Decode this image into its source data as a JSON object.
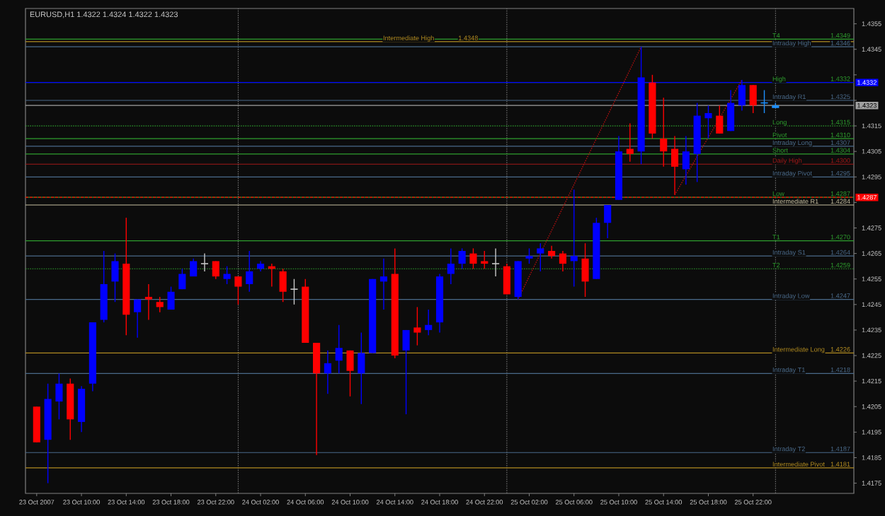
{
  "chart_data": {
    "type": "candlestick",
    "title": "EURUSD,H1  1.4322 1.4324 1.4322 1.4323",
    "x": [
      "2007-10-23T06:00",
      "2007-10-23T07:00",
      "2007-10-23T08:00",
      "2007-10-23T09:00",
      "2007-10-23T10:00",
      "2007-10-23T11:00",
      "2007-10-23T12:00",
      "2007-10-23T13:00",
      "2007-10-23T14:00",
      "2007-10-23T15:00",
      "2007-10-23T16:00",
      "2007-10-23T17:00",
      "2007-10-23T18:00",
      "2007-10-23T19:00",
      "2007-10-23T20:00",
      "2007-10-23T21:00",
      "2007-10-23T22:00",
      "2007-10-23T23:00",
      "2007-10-24T00:00",
      "2007-10-24T01:00",
      "2007-10-24T02:00",
      "2007-10-24T03:00",
      "2007-10-24T04:00",
      "2007-10-24T05:00",
      "2007-10-24T06:00",
      "2007-10-24T07:00",
      "2007-10-24T08:00",
      "2007-10-24T09:00",
      "2007-10-24T10:00",
      "2007-10-24T11:00",
      "2007-10-24T12:00",
      "2007-10-24T13:00",
      "2007-10-24T14:00",
      "2007-10-24T15:00",
      "2007-10-24T16:00",
      "2007-10-24T17:00",
      "2007-10-24T18:00",
      "2007-10-24T19:00",
      "2007-10-24T20:00",
      "2007-10-24T21:00",
      "2007-10-24T22:00",
      "2007-10-24T23:00",
      "2007-10-25T00:00",
      "2007-10-25T01:00",
      "2007-10-25T02:00",
      "2007-10-25T03:00",
      "2007-10-25T04:00",
      "2007-10-25T05:00",
      "2007-10-25T06:00",
      "2007-10-25T07:00",
      "2007-10-25T08:00",
      "2007-10-25T09:00",
      "2007-10-25T10:00",
      "2007-10-25T11:00",
      "2007-10-25T12:00",
      "2007-10-25T13:00",
      "2007-10-25T14:00",
      "2007-10-25T15:00",
      "2007-10-25T16:00",
      "2007-10-25T17:00",
      "2007-10-25T18:00",
      "2007-10-25T19:00",
      "2007-10-25T20:00",
      "2007-10-25T21:00",
      "2007-10-25T22:00",
      "2007-10-25T23:00",
      "2007-10-26T00:00"
    ],
    "ohlc": [
      [
        1.4205,
        1.4205,
        1.4191,
        1.4191
      ],
      [
        1.4192,
        1.4214,
        1.4175,
        1.4208
      ],
      [
        1.4207,
        1.4218,
        1.42,
        1.4214
      ],
      [
        1.4214,
        1.4216,
        1.4192,
        1.42
      ],
      [
        1.4199,
        1.4213,
        1.4195,
        1.4212
      ],
      [
        1.4214,
        1.4238,
        1.4211,
        1.4238
      ],
      [
        1.4239,
        1.4266,
        1.4238,
        1.4253
      ],
      [
        1.4254,
        1.4265,
        1.4246,
        1.4262
      ],
      [
        1.4261,
        1.4279,
        1.4233,
        1.4241
      ],
      [
        1.4242,
        1.4247,
        1.4232,
        1.4247
      ],
      [
        1.4248,
        1.4253,
        1.4239,
        1.4247
      ],
      [
        1.4246,
        1.4248,
        1.4242,
        1.4244
      ],
      [
        1.4243,
        1.4252,
        1.4243,
        1.425
      ],
      [
        1.4251,
        1.4259,
        1.4251,
        1.4257
      ],
      [
        1.4256,
        1.4263,
        1.4256,
        1.4262
      ],
      [
        1.4261,
        1.4265,
        1.4258,
        1.4261
      ],
      [
        1.4262,
        1.4262,
        1.4255,
        1.4256
      ],
      [
        1.4255,
        1.426,
        1.4253,
        1.4257
      ],
      [
        1.4256,
        1.4256,
        1.4245,
        1.4252
      ],
      [
        1.4253,
        1.4266,
        1.425,
        1.4258
      ],
      [
        1.4259,
        1.4262,
        1.4258,
        1.4261
      ],
      [
        1.426,
        1.4261,
        1.4252,
        1.4259
      ],
      [
        1.4258,
        1.4259,
        1.4246,
        1.425
      ],
      [
        1.4251,
        1.4255,
        1.4245,
        1.4251
      ],
      [
        1.4252,
        1.4255,
        1.423,
        1.423
      ],
      [
        1.423,
        1.423,
        1.4186,
        1.4218
      ],
      [
        1.4218,
        1.4227,
        1.421,
        1.4222
      ],
      [
        1.4223,
        1.4237,
        1.4218,
        1.4228
      ],
      [
        1.4227,
        1.4227,
        1.4209,
        1.4219
      ],
      [
        1.4218,
        1.4234,
        1.4206,
        1.4226
      ],
      [
        1.4226,
        1.4255,
        1.4226,
        1.4255
      ],
      [
        1.4254,
        1.4263,
        1.4243,
        1.4256
      ],
      [
        1.4257,
        1.4267,
        1.4224,
        1.4225
      ],
      [
        1.4227,
        1.4235,
        1.4202,
        1.4235
      ],
      [
        1.4236,
        1.4244,
        1.4229,
        1.4234
      ],
      [
        1.4235,
        1.4243,
        1.4233,
        1.4237
      ],
      [
        1.4238,
        1.4257,
        1.4234,
        1.4256
      ],
      [
        1.4257,
        1.4267,
        1.4253,
        1.4261
      ],
      [
        1.4261,
        1.4267,
        1.4259,
        1.4266
      ],
      [
        1.4265,
        1.4267,
        1.4259,
        1.4261
      ],
      [
        1.4262,
        1.4266,
        1.4259,
        1.4261
      ],
      [
        1.4261,
        1.4267,
        1.4256,
        1.4261
      ],
      [
        1.426,
        1.4261,
        1.4249,
        1.4249
      ],
      [
        1.4248,
        1.4262,
        1.4247,
        1.4262
      ],
      [
        1.4263,
        1.4267,
        1.4261,
        1.4264
      ],
      [
        1.4265,
        1.4269,
        1.4258,
        1.4267
      ],
      [
        1.4266,
        1.4268,
        1.4263,
        1.4264
      ],
      [
        1.4265,
        1.4266,
        1.4258,
        1.4261
      ],
      [
        1.4262,
        1.429,
        1.4252,
        1.4264
      ],
      [
        1.4263,
        1.4269,
        1.4248,
        1.4254
      ],
      [
        1.4255,
        1.4279,
        1.4255,
        1.4277
      ],
      [
        1.4277,
        1.4284,
        1.4271,
        1.4284
      ],
      [
        1.4286,
        1.4311,
        1.4286,
        1.4305
      ],
      [
        1.4306,
        1.4316,
        1.4301,
        1.4304
      ],
      [
        1.4305,
        1.4346,
        1.43,
        1.4334
      ],
      [
        1.4332,
        1.4335,
        1.431,
        1.4312
      ],
      [
        1.431,
        1.4326,
        1.4299,
        1.4305
      ],
      [
        1.4306,
        1.4311,
        1.4288,
        1.4299
      ],
      [
        1.4298,
        1.4311,
        1.4292,
        1.4305
      ],
      [
        1.4304,
        1.4324,
        1.4293,
        1.4319
      ],
      [
        1.4318,
        1.4323,
        1.431,
        1.432
      ],
      [
        1.4319,
        1.4323,
        1.4312,
        1.4312
      ],
      [
        1.4313,
        1.4329,
        1.4313,
        1.4324
      ],
      [
        1.4323,
        1.4333,
        1.4321,
        1.4331
      ],
      [
        1.4331,
        1.4331,
        1.432,
        1.4323
      ],
      [
        1.4324,
        1.4329,
        1.432,
        1.4324
      ],
      [
        1.4322,
        1.4324,
        1.4322,
        1.4323
      ]
    ],
    "colors": [
      "#ff0000",
      "#0000ff",
      "#0000ff",
      "#ff0000",
      "#0000ff",
      "#0000ff",
      "#0000ff",
      "#0000ff",
      "#ff0000",
      "#0000ff",
      "#ff0000",
      "#ff0000",
      "#0000ff",
      "#0000ff",
      "#0000ff",
      "#c8c8c8",
      "#ff0000",
      "#0000ff",
      "#ff0000",
      "#0000ff",
      "#0000ff",
      "#ff0000",
      "#ff0000",
      "#c8c8c8",
      "#ff0000",
      "#ff0000",
      "#0000ff",
      "#0000ff",
      "#ff0000",
      "#0000ff",
      "#0000ff",
      "#0000ff",
      "#ff0000",
      "#0000ff",
      "#ff0000",
      "#0000ff",
      "#0000ff",
      "#0000ff",
      "#0000ff",
      "#ff0000",
      "#ff0000",
      "#c8c8c8",
      "#ff0000",
      "#0000ff",
      "#0000ff",
      "#0000ff",
      "#ff0000",
      "#ff0000",
      "#0000ff",
      "#ff0000",
      "#0000ff",
      "#0000ff",
      "#0000ff",
      "#ff0000",
      "#0000ff",
      "#ff0000",
      "#ff0000",
      "#ff0000",
      "#0000ff",
      "#0000ff",
      "#0000ff",
      "#ff0000",
      "#0000ff",
      "#0000ff",
      "#ff0000",
      "#1e90ff",
      "#1e90ff"
    ],
    "series": [
      {
        "type": "line",
        "x": [
          "2007-10-25T01:00",
          "2007-10-25T12:00"
        ],
        "values": [
          1.4247,
          1.4346
        ],
        "color": "#b01010",
        "line_style": "dotted"
      },
      {
        "type": "line",
        "x": [
          "2007-10-25T15:00",
          "2007-10-25T21:00"
        ],
        "values": [
          1.4288,
          1.4333
        ],
        "color": "#b01010",
        "line_style": "dotted"
      }
    ],
    "xlim": [
      "2007-10-23T05:00",
      "2007-10-26T07:00"
    ],
    "xticks": [
      {
        "value": "2007-10-23T06:00",
        "label": "23 Oct 2007"
      },
      {
        "value": "2007-10-23T10:00",
        "label": "23 Oct 10:00"
      },
      {
        "value": "2007-10-23T14:00",
        "label": "23 Oct 14:00"
      },
      {
        "value": "2007-10-23T18:00",
        "label": "23 Oct 18:00"
      },
      {
        "value": "2007-10-23T22:00",
        "label": "23 Oct 22:00"
      },
      {
        "value": "2007-10-24T02:00",
        "label": "24 Oct 02:00"
      },
      {
        "value": "2007-10-24T06:00",
        "label": "24 Oct 06:00"
      },
      {
        "value": "2007-10-24T10:00",
        "label": "24 Oct 10:00"
      },
      {
        "value": "2007-10-24T14:00",
        "label": "24 Oct 14:00"
      },
      {
        "value": "2007-10-24T18:00",
        "label": "24 Oct 18:00"
      },
      {
        "value": "2007-10-24T22:00",
        "label": "24 Oct 22:00"
      },
      {
        "value": "2007-10-25T02:00",
        "label": "25 Oct 02:00"
      },
      {
        "value": "2007-10-25T06:00",
        "label": "25 Oct 06:00"
      },
      {
        "value": "2007-10-25T10:00",
        "label": "25 Oct 10:00"
      },
      {
        "value": "2007-10-25T14:00",
        "label": "25 Oct 14:00"
      },
      {
        "value": "2007-10-25T18:00",
        "label": "25 Oct 18:00"
      },
      {
        "value": "2007-10-25T22:00",
        "label": "25 Oct 22:00"
      }
    ],
    "ylim": [
      1.4171,
      1.4361
    ],
    "yticks": [
      1.4175,
      1.4185,
      1.4195,
      1.4205,
      1.4215,
      1.4225,
      1.4235,
      1.4245,
      1.4255,
      1.4265,
      1.4275,
      {
        "value": 1.4285,
        "label": null
      },
      1.4295,
      1.4305,
      1.4315,
      {
        "value": 1.4325,
        "label": null
      },
      {
        "value": 1.4335,
        "label": null
      },
      1.4345,
      1.4355
    ],
    "annotations": [
      {
        "text": "1.4349",
        "x": "2007-10-26T06:45",
        "y": 1.4349
      },
      {
        "text": "1.4348",
        "x": "2007-10-24T21:30",
        "y": 1.4348
      },
      {
        "text": "1.4346",
        "x": "2007-10-26T06:45",
        "y": 1.4346
      },
      {
        "text": "1.4332",
        "x": "2007-10-26T06:45",
        "y": 1.4332
      },
      {
        "text": "1.4325",
        "x": "2007-10-26T06:45",
        "y": 1.4325
      },
      {
        "text": "1.4315",
        "x": "2007-10-26T06:45",
        "y": 1.4315
      },
      {
        "text": "1.4310",
        "x": "2007-10-26T06:45",
        "y": 1.431
      },
      {
        "text": "1.4307",
        "x": "2007-10-26T06:45",
        "y": 1.4307
      },
      {
        "text": "1.4304",
        "x": "2007-10-26T06:45",
        "y": 1.4304
      },
      {
        "text": "1.4300",
        "x": "2007-10-26T06:45",
        "y": 1.43
      },
      {
        "text": "1.4295",
        "x": "2007-10-26T06:45",
        "y": 1.4295
      },
      {
        "text": "1.4287",
        "x": "2007-10-26T06:45",
        "y": 1.4287
      },
      {
        "text": "1.4284",
        "x": "2007-10-26T06:45",
        "y": 1.4284
      },
      {
        "text": "1.4270",
        "x": "2007-10-26T06:45",
        "y": 1.427
      },
      {
        "text": "1.4264",
        "x": "2007-10-26T06:45",
        "y": 1.4264
      },
      {
        "text": "1.4259",
        "x": "2007-10-26T06:45",
        "y": 1.4259
      },
      {
        "text": "1.4247",
        "x": "2007-10-26T06:45",
        "y": 1.4247
      },
      {
        "text": "1.4226",
        "x": "2007-10-26T06:45",
        "y": 1.4226
      },
      {
        "text": "1.4218",
        "x": "2007-10-26T06:45",
        "y": 1.4218
      },
      {
        "text": "1.4187",
        "x": "2007-10-26T06:45",
        "y": 1.4187
      },
      {
        "text": "1.4181",
        "x": "2007-10-26T06:45",
        "y": 1.4181
      },
      {
        "text": "1.4332",
        "y": 1.4332
      },
      {
        "text": "1.4323",
        "y": 1.4323
      },
      {
        "text": "1.4287",
        "y": 1.4287
      }
    ],
    "ref_lines": [
      {
        "axis": "x",
        "value": "2007-10-24T00:00",
        "color": "#808080",
        "line_style": "dotted"
      },
      {
        "axis": "x",
        "value": "2007-10-25T00:00",
        "color": "#808080",
        "line_style": "dotted"
      },
      {
        "axis": "x",
        "value": "2007-10-26T00:00",
        "color": "#808080",
        "line_style": "dotted"
      },
      {
        "axis": "y",
        "value": 1.4349,
        "label": "T4",
        "color": "#2e9e2e"
      },
      {
        "axis": "y",
        "value": 1.4348,
        "label": "Intermediate High",
        "color": "#b08a20"
      },
      {
        "axis": "y",
        "value": 1.4346,
        "label": "Intraday High",
        "color": "#4a6a8a"
      },
      {
        "axis": "y",
        "value": 1.4332,
        "label": "High",
        "color": "#2e9e2e"
      },
      {
        "axis": "y",
        "value": 1.4332,
        "color": "#0000ff"
      },
      {
        "axis": "y",
        "value": 1.4325,
        "label": "Intraday  R1",
        "color": "#4a6a8a"
      },
      {
        "axis": "y",
        "value": 1.4323,
        "color": "#a0a0a0"
      },
      {
        "axis": "y",
        "value": 1.4315,
        "label": "Long",
        "color": "#2e9e2e",
        "line_style": "dotted"
      },
      {
        "axis": "y",
        "value": 1.431,
        "label": "Pivot",
        "color": "#2e9e2e"
      },
      {
        "axis": "y",
        "value": 1.4307,
        "label": "Intraday Long",
        "color": "#4a6a8a"
      },
      {
        "axis": "y",
        "value": 1.4304,
        "label": "Short",
        "color": "#2e9e2e"
      },
      {
        "axis": "y",
        "value": 1.43,
        "label": "Daily High",
        "color": "#a01818"
      },
      {
        "axis": "y",
        "value": 1.4295,
        "label": "Intraday Pivot",
        "color": "#4a6a8a"
      },
      {
        "axis": "y",
        "value": 1.4287,
        "label": "Low",
        "color": "#2e9e2e"
      },
      {
        "axis": "y",
        "value": 1.4287,
        "color": "#ff0000",
        "line_style": "dashed"
      },
      {
        "axis": "y",
        "value": 1.4284,
        "label": "Intermediate R1",
        "color": "#c8c0a0"
      },
      {
        "axis": "y",
        "value": 1.427,
        "label": "T1",
        "color": "#2e9e2e"
      },
      {
        "axis": "y",
        "value": 1.4264,
        "label": "Intraday  S1",
        "color": "#4a6a8a"
      },
      {
        "axis": "y",
        "value": 1.4259,
        "label": "T2",
        "color": "#2e9e2e",
        "line_style": "dotted"
      },
      {
        "axis": "y",
        "value": 1.4247,
        "label": "Intraday Low",
        "color": "#4a6a8a"
      },
      {
        "axis": "y",
        "value": 1.4226,
        "label": "Intermediate Long",
        "color": "#b08a20"
      },
      {
        "axis": "y",
        "value": 1.4218,
        "label": "Intraday  T1",
        "color": "#4a6a8a"
      },
      {
        "axis": "y",
        "value": 1.4187,
        "label": "Intraday  T2",
        "color": "#4a6a8a"
      },
      {
        "axis": "y",
        "value": 1.4181,
        "label": "Intermediate Pivot",
        "color": "#b08a20"
      }
    ]
  }
}
